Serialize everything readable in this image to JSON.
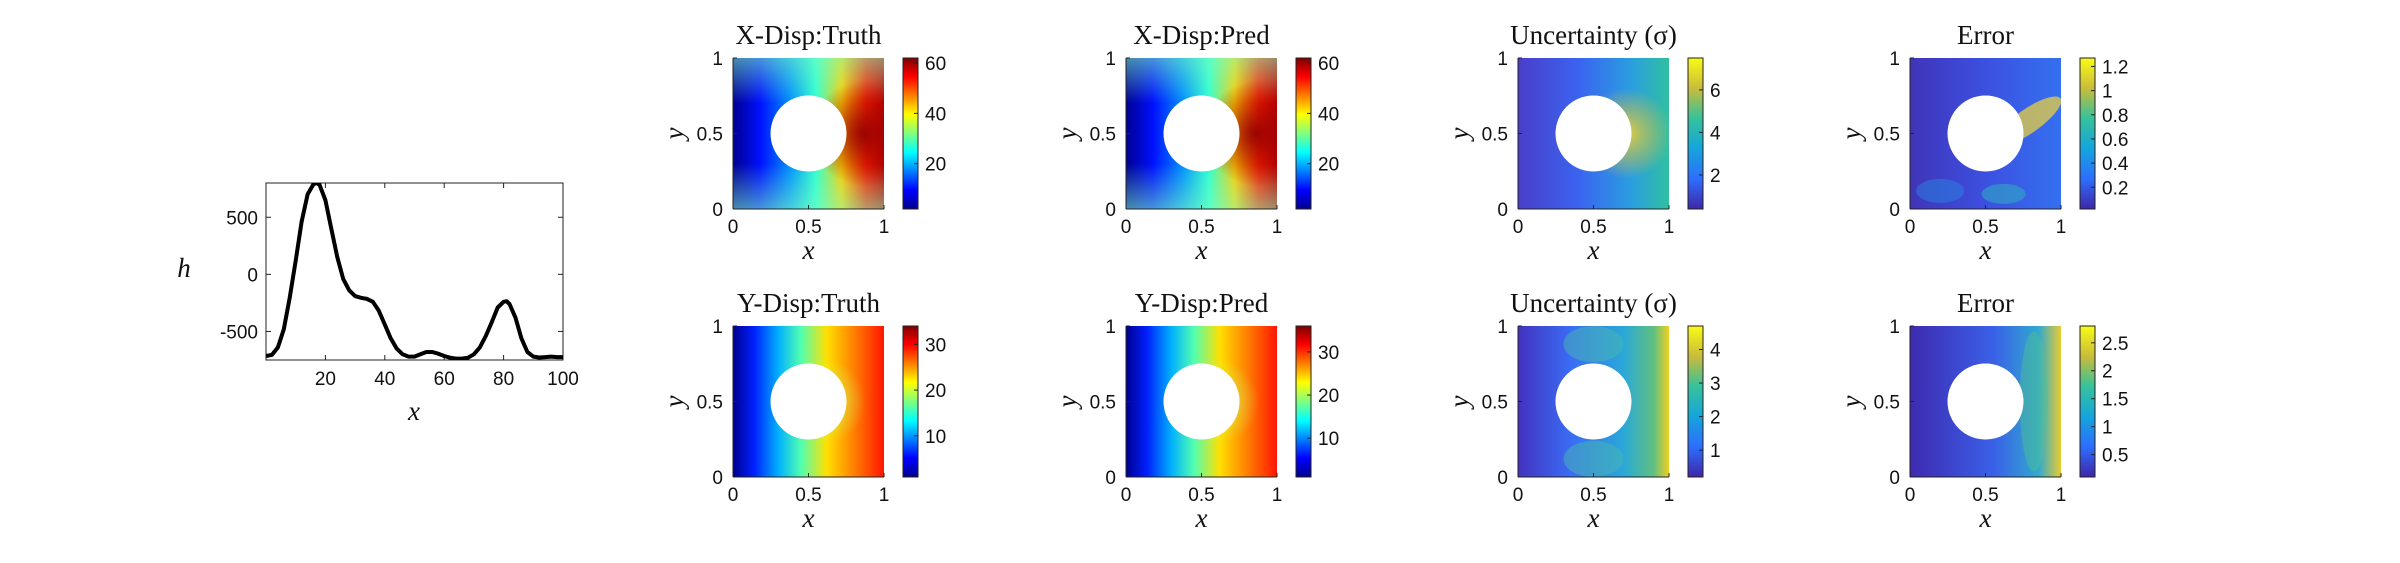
{
  "chart_data": [
    {
      "type": "line",
      "xlabel": "x",
      "ylabel": "h",
      "xlim": [
        0,
        100
      ],
      "ylim": [
        -750,
        800
      ],
      "xticks": [
        "20",
        "40",
        "60",
        "80",
        "100"
      ],
      "yticks": [
        "500",
        "0",
        "-500"
      ],
      "series": [
        {
          "x": [
            0,
            2,
            4,
            6,
            8,
            10,
            12,
            14,
            16,
            17,
            18,
            20,
            22,
            24,
            26,
            28,
            30,
            32,
            34,
            36,
            38,
            40,
            42,
            44,
            46,
            48,
            50,
            52,
            54,
            56,
            58,
            60,
            62,
            64,
            66,
            68,
            70,
            72,
            74,
            76,
            78,
            80,
            81,
            82,
            84,
            86,
            88,
            90,
            92,
            94,
            96,
            98,
            100
          ],
          "y": [
            -715,
            -705,
            -640,
            -480,
            -200,
            120,
            460,
            700,
            790,
            800,
            785,
            650,
            400,
            150,
            -40,
            -140,
            -190,
            -205,
            -215,
            -240,
            -320,
            -440,
            -560,
            -650,
            -700,
            -720,
            -720,
            -700,
            -680,
            -680,
            -695,
            -715,
            -730,
            -738,
            -738,
            -730,
            -700,
            -640,
            -540,
            -420,
            -290,
            -240,
            -235,
            -260,
            -380,
            -560,
            -680,
            -720,
            -728,
            -725,
            -720,
            -725,
            -725
          ]
        }
      ]
    },
    {
      "type": "heatmap",
      "title": "X-Disp:Truth",
      "xlabel": "x",
      "ylabel": "y",
      "xticks": [
        "0",
        "0.5",
        "1"
      ],
      "yticks": [
        "0",
        "0.5",
        "1"
      ],
      "colormap": "jet",
      "clim": [
        2,
        62
      ],
      "colorbar_ticks": [
        "60",
        "40",
        "20"
      ]
    },
    {
      "type": "heatmap",
      "title": "X-Disp:Pred",
      "xlabel": "x",
      "ylabel": "y",
      "xticks": [
        "0",
        "0.5",
        "1"
      ],
      "yticks": [
        "0",
        "0.5",
        "1"
      ],
      "colormap": "jet",
      "clim": [
        2,
        62
      ],
      "colorbar_ticks": [
        "60",
        "40",
        "20"
      ]
    },
    {
      "type": "heatmap",
      "title": "Uncertainty (σ)",
      "xlabel": "x",
      "ylabel": "y",
      "xticks": [
        "0",
        "0.5",
        "1"
      ],
      "yticks": [
        "0",
        "0.5",
        "1"
      ],
      "colormap": "parula",
      "clim": [
        0.4,
        7.5
      ],
      "colorbar_ticks": [
        "6",
        "4",
        "2"
      ]
    },
    {
      "type": "heatmap",
      "title": "Error",
      "xlabel": "x",
      "ylabel": "y",
      "xticks": [
        "0",
        "0.5",
        "1"
      ],
      "yticks": [
        "0",
        "0.5",
        "1"
      ],
      "colormap": "parula",
      "clim": [
        0.02,
        1.27
      ],
      "colorbar_ticks": [
        "1.2",
        "1",
        "0.8",
        "0.6",
        "0.4",
        "0.2"
      ]
    },
    {
      "type": "heatmap",
      "title": "Y-Disp:Truth",
      "xlabel": "x",
      "ylabel": "y",
      "xticks": [
        "0",
        "0.5",
        "1"
      ],
      "yticks": [
        "0",
        "0.5",
        "1"
      ],
      "colormap": "jet",
      "clim": [
        1,
        34
      ],
      "colorbar_ticks": [
        "30",
        "20",
        "10"
      ]
    },
    {
      "type": "heatmap",
      "title": "Y-Disp:Pred",
      "xlabel": "x",
      "ylabel": "y",
      "xticks": [
        "0",
        "0.5",
        "1"
      ],
      "yticks": [
        "0",
        "0.5",
        "1"
      ],
      "colormap": "jet",
      "clim": [
        1,
        36
      ],
      "colorbar_ticks": [
        "30",
        "20",
        "10"
      ]
    },
    {
      "type": "heatmap",
      "title": "Uncertainty (σ)",
      "xlabel": "x",
      "ylabel": "y",
      "xticks": [
        "0",
        "0.5",
        "1"
      ],
      "yticks": [
        "0",
        "0.5",
        "1"
      ],
      "colormap": "parula",
      "clim": [
        0.2,
        4.7
      ],
      "colorbar_ticks": [
        "4",
        "3",
        "2",
        "1"
      ]
    },
    {
      "type": "heatmap",
      "title": "Error",
      "xlabel": "x",
      "ylabel": "y",
      "xticks": [
        "0",
        "0.5",
        "1"
      ],
      "yticks": [
        "0",
        "0.5",
        "1"
      ],
      "colormap": "parula",
      "clim": [
        0.1,
        2.8
      ],
      "colorbar_ticks": [
        "2.5",
        "2",
        "1.5",
        "1",
        "0.5"
      ]
    }
  ]
}
